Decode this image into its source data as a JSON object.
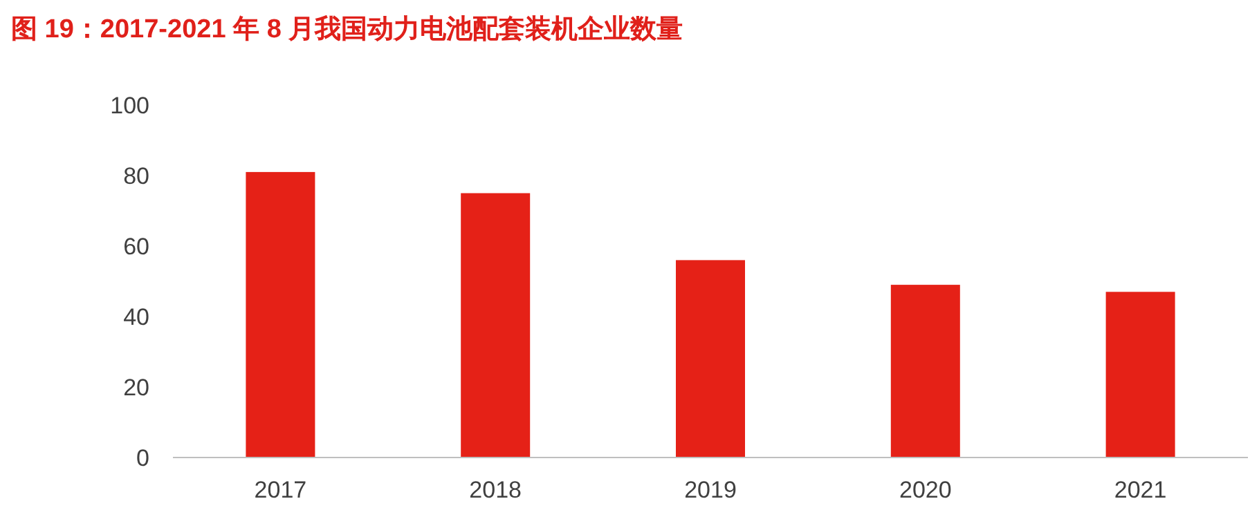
{
  "chart_data": {
    "type": "bar",
    "title": "图 19：2017-2021 年 8 月我国动力电池配套装机企业数量",
    "categories": [
      "2017",
      "2018",
      "2019",
      "2020",
      "2021"
    ],
    "values": [
      81,
      75,
      56,
      49,
      47
    ],
    "color": "#e52117",
    "ylim": [
      0,
      100
    ],
    "yticks": [
      0,
      20,
      40,
      60,
      80,
      100
    ]
  }
}
